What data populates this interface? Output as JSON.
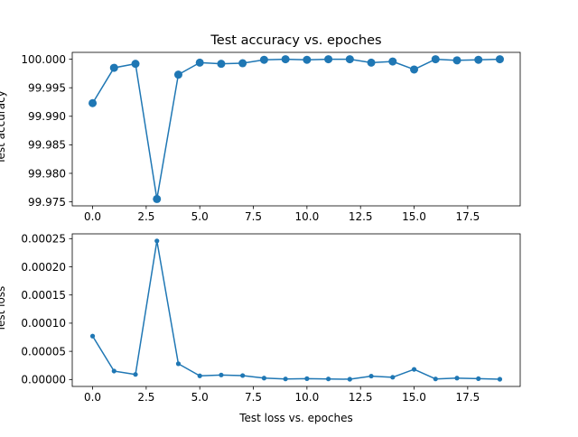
{
  "chart_data": [
    {
      "type": "line",
      "title": "Test accuracy vs. epoches",
      "xlabel": "",
      "ylabel": "Test accuracy",
      "x": [
        0,
        1,
        2,
        3,
        4,
        5,
        6,
        7,
        8,
        9,
        10,
        11,
        12,
        13,
        14,
        15,
        16,
        17,
        18,
        19
      ],
      "series": [
        {
          "values": [
            99.9923,
            99.9985,
            99.9992,
            99.9755,
            99.9973,
            99.9994,
            99.9992,
            99.9993,
            99.9999,
            100.0,
            99.9999,
            100.0,
            100.0,
            99.9994,
            99.9996,
            99.9982,
            100.0,
            99.9998,
            99.9999,
            100.0
          ]
        }
      ],
      "xlim": [
        -0.95,
        19.95
      ],
      "ylim": [
        99.9743,
        100.0012
      ],
      "xticks": [
        0,
        2.5,
        5,
        7.5,
        10,
        12.5,
        15,
        17.5
      ],
      "xtick_labels": [
        "0.0",
        "2.5",
        "5.0",
        "7.5",
        "10.0",
        "12.5",
        "15.0",
        "17.5"
      ],
      "yticks": [
        99.975,
        99.98,
        99.985,
        99.99,
        99.995,
        100.0
      ],
      "ytick_labels": [
        "99.975",
        "99.980",
        "99.985",
        "99.990",
        "99.995",
        "100.000"
      ],
      "color": "#1f77b4",
      "marker": "large-circle",
      "grid": false
    },
    {
      "type": "line",
      "title": "",
      "xlabel": "Test loss vs. epoches",
      "ylabel": "Test loss",
      "x": [
        0,
        1,
        2,
        3,
        4,
        5,
        6,
        7,
        8,
        9,
        10,
        11,
        12,
        13,
        14,
        15,
        16,
        17,
        18,
        19
      ],
      "series": [
        {
          "values": [
            7.7e-05,
            1.5e-05,
            9e-06,
            0.000246,
            2.8e-05,
            6.5e-06,
            8e-06,
            7e-06,
            2.5e-06,
            1e-06,
            1.5e-06,
            1e-06,
            5e-07,
            6e-06,
            4e-06,
            1.8e-05,
            1e-06,
            2.5e-06,
            1.5e-06,
            5e-07
          ]
        }
      ],
      "xlim": [
        -0.95,
        19.95
      ],
      "ylim": [
        -1.23e-05,
        0.0002585
      ],
      "xticks": [
        0,
        2.5,
        5,
        7.5,
        10,
        12.5,
        15,
        17.5
      ],
      "xtick_labels": [
        "0.0",
        "2.5",
        "5.0",
        "7.5",
        "10.0",
        "12.5",
        "15.0",
        "17.5"
      ],
      "yticks": [
        0,
        5e-05,
        0.0001,
        0.00015,
        0.0002,
        0.00025
      ],
      "ytick_labels": [
        "0.00000",
        "0.00005",
        "0.00010",
        "0.00015",
        "0.00020",
        "0.00025"
      ],
      "color": "#1f77b4",
      "marker": "small-circle",
      "grid": false
    }
  ]
}
